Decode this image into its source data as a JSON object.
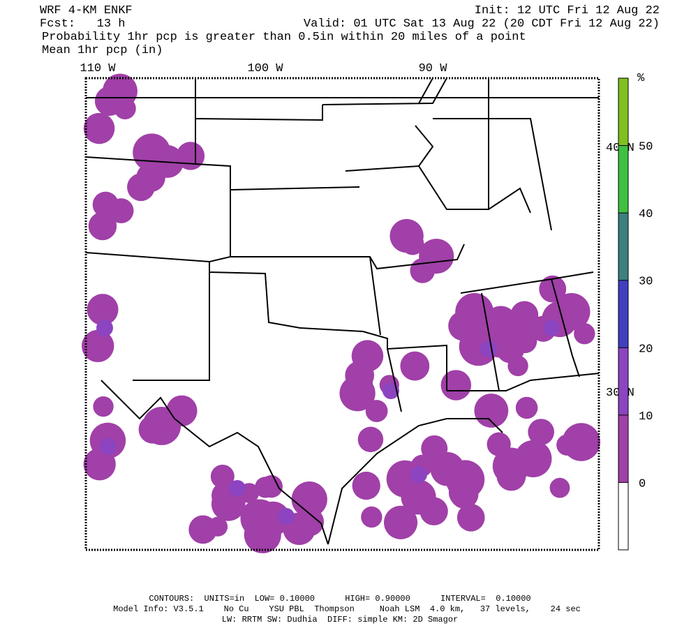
{
  "header": {
    "model": "WRF 4-KM ENKF",
    "init": "Init: 12 UTC Fri 12 Aug 22",
    "forecast": "Fcst:   13 h",
    "valid": "Valid: 01 UTC Sat 13 Aug 22 (20 CDT Fri 12 Aug 22)",
    "field": "Probability 1hr pcp is greater than 0.5in within 20 miles of a point",
    "overlay": "Mean 1hr pcp (in)"
  },
  "map": {
    "longitude_labels": [
      "110 W",
      "100 W",
      "90 W"
    ],
    "latitude_labels": [
      "40 N",
      "30 N"
    ]
  },
  "colorbar": {
    "unit": "%",
    "ticks": [
      0,
      10,
      20,
      30,
      40,
      50
    ],
    "colors": [
      "#a040a8",
      "#8c44c0",
      "#4040c0",
      "#3c8080",
      "#40c040",
      "#80c020"
    ]
  },
  "footer": {
    "contours": "CONTOURS:  UNITS=in  LOW= 0.10000      HIGH= 0.90000      INTERVAL=  0.10000",
    "model_info": "Model Info: V3.5.1    No Cu    YSU PBL  Thompson     Noah LSM  4.0 km,   37 levels,    24 sec",
    "physics": "LW: RRTM SW: Dudhia  DIFF: simple KM: 2D Smagor"
  }
}
